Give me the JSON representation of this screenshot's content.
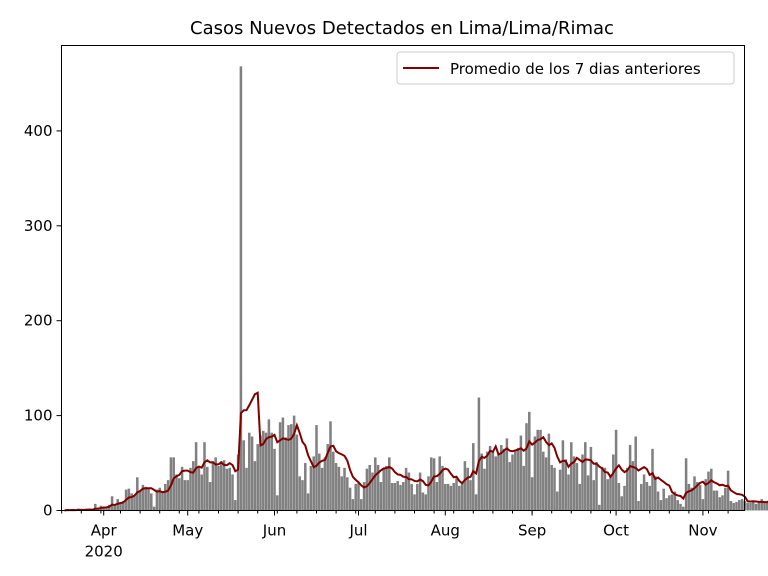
{
  "chart_data": {
    "type": "bar",
    "title": "Casos Nuevos Detectados en Lima/Lima/Rimac",
    "xlabel": "",
    "ylabel": "",
    "start_date": "2020-03-18",
    "ylim": [
      0,
      490
    ],
    "yticks": [
      0,
      100,
      200,
      300,
      400
    ],
    "xticks": [
      {
        "date": "2020-04-01",
        "label": "Apr",
        "sublabel": "2020"
      },
      {
        "date": "2020-05-01",
        "label": "May",
        "sublabel": ""
      },
      {
        "date": "2020-06-01",
        "label": "Jun",
        "sublabel": ""
      },
      {
        "date": "2020-07-01",
        "label": "Jul",
        "sublabel": ""
      },
      {
        "date": "2020-08-01",
        "label": "Aug",
        "sublabel": ""
      },
      {
        "date": "2020-09-01",
        "label": "Sep",
        "sublabel": ""
      },
      {
        "date": "2020-10-01",
        "label": "Oct",
        "sublabel": ""
      },
      {
        "date": "2020-11-01",
        "label": "Nov",
        "sublabel": ""
      }
    ],
    "bar_color": "#808080",
    "line_color": "#800000",
    "legend": {
      "position": "top-right",
      "label": "Promedio de los 7 dias anteriores"
    },
    "grid": false,
    "values": [
      0,
      1,
      0,
      1,
      0,
      2,
      1,
      0,
      2,
      1,
      0,
      7,
      3,
      5,
      4,
      3,
      6,
      15,
      5,
      12,
      9,
      10,
      22,
      23,
      18,
      16,
      35,
      20,
      27,
      25,
      23,
      18,
      4,
      22,
      24,
      19,
      28,
      32,
      56,
      56,
      38,
      34,
      46,
      32,
      32,
      45,
      52,
      72,
      45,
      38,
      72,
      46,
      30,
      52,
      56,
      47,
      52,
      53,
      44,
      45,
      38,
      11,
      59,
      468,
      74,
      45,
      82,
      78,
      52,
      70,
      79,
      84,
      82,
      96,
      82,
      65,
      16,
      93,
      98,
      77,
      90,
      91,
      100,
      80,
      36,
      32,
      50,
      18,
      47,
      57,
      90,
      60,
      45,
      56,
      70,
      94,
      62,
      50,
      46,
      36,
      45,
      35,
      24,
      12,
      28,
      29,
      12,
      30,
      44,
      48,
      40,
      56,
      48,
      30,
      44,
      47,
      56,
      29,
      29,
      31,
      27,
      30,
      45,
      40,
      28,
      17,
      28,
      40,
      19,
      17,
      36,
      56,
      55,
      30,
      57,
      47,
      28,
      28,
      26,
      29,
      34,
      26,
      30,
      52,
      45,
      32,
      71,
      17,
      119,
      60,
      44,
      62,
      68,
      63,
      57,
      60,
      69,
      65,
      76,
      51,
      59,
      63,
      66,
      79,
      47,
      92,
      104,
      35,
      78,
      85,
      85,
      62,
      56,
      81,
      48,
      45,
      20,
      43,
      74,
      54,
      38,
      72,
      57,
      50,
      28,
      59,
      72,
      37,
      67,
      32,
      51,
      6,
      46,
      45,
      33,
      36,
      59,
      85,
      29,
      15,
      26,
      45,
      69,
      52,
      78,
      10,
      28,
      38,
      30,
      26,
      65,
      36,
      20,
      11,
      23,
      13,
      16,
      17,
      20,
      11,
      7,
      4,
      55,
      28,
      24,
      36,
      30,
      27,
      12,
      33,
      41,
      44,
      21,
      21,
      14,
      16,
      24,
      42,
      10,
      8,
      9,
      11,
      12,
      10,
      8,
      8,
      10,
      7,
      9,
      12,
      8,
      8,
      20,
      12,
      11
    ]
  }
}
